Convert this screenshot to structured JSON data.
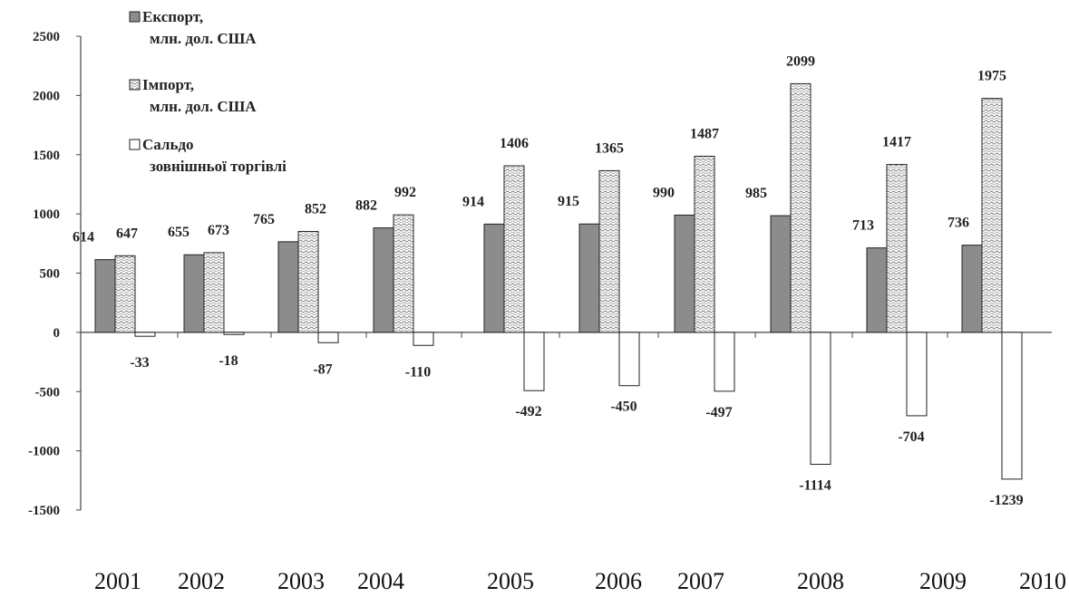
{
  "chart_data": {
    "type": "bar",
    "categories": [
      "2001",
      "2002",
      "2003",
      "2004",
      "2005",
      "2006",
      "2007",
      "2008",
      "2009",
      "2010"
    ],
    "series": [
      {
        "name": "Експорт, млн. дол. США",
        "legend_lines": [
          "Експорт,",
          "млн. дол. США"
        ],
        "pattern": "solid-gray",
        "color": "#8c8c8c",
        "values": [
          614,
          655,
          765,
          882,
          914,
          915,
          990,
          985,
          713,
          736
        ]
      },
      {
        "name": "Імпорт, млн. дол. США",
        "legend_lines": [
          "Імпорт,",
          "млн. дол. США"
        ],
        "pattern": "wavy-hatch",
        "color": "#ffffff",
        "values": [
          647,
          673,
          852,
          992,
          1406,
          1365,
          1487,
          2099,
          1417,
          1975
        ]
      },
      {
        "name": "Сальдо зовнішньої торгівлі",
        "legend_lines": [
          "Сальдо",
          "зовнішньої торгівлі"
        ],
        "pattern": "white",
        "color": "#ffffff",
        "values": [
          -33,
          -18,
          -87,
          -110,
          -492,
          -450,
          -497,
          -1114,
          -704,
          -1239
        ]
      }
    ],
    "yticks": [
      2500,
      2000,
      1500,
      1000,
      500,
      0,
      -500,
      -1000,
      -1500
    ],
    "ylim": [
      -1500,
      2500
    ],
    "legend_position": "top-left",
    "grid": false,
    "title": "",
    "xlabel": "",
    "ylabel": ""
  }
}
